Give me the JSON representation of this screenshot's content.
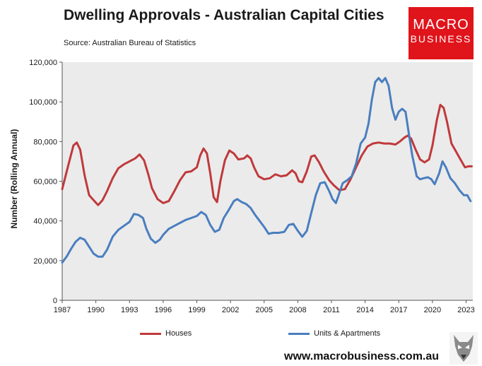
{
  "header": {
    "title": "Dwelling Approvals - Australian Capital Cities",
    "source": "Source: Australian Bureau of Statistics"
  },
  "logo": {
    "line1": "MACRO",
    "line2": "BUSINESS",
    "color": "#e0141b"
  },
  "footer": {
    "url": "www.macrobusiness.com.au"
  },
  "chart_data": {
    "type": "line",
    "title": "Dwelling Approvals - Australian Capital Cities",
    "xlabel": "",
    "ylabel": "Number (Rolling Annual)",
    "xlim": [
      1987,
      2023.6
    ],
    "ylim": [
      0,
      120000
    ],
    "x_ticks": [
      "1987",
      "1990",
      "1993",
      "1996",
      "1999",
      "2002",
      "2005",
      "2008",
      "2011",
      "2014",
      "2017",
      "2020",
      "2023"
    ],
    "y_ticks": [
      "0",
      "20,000",
      "40,000",
      "60,000",
      "80,000",
      "100,000",
      "120,000"
    ],
    "grid": false,
    "background": "#ebebeb",
    "legend": "bottom",
    "series": [
      {
        "name": "Houses",
        "color": "#c0393b",
        "points": [
          [
            1987.0,
            56000
          ],
          [
            1987.5,
            67000
          ],
          [
            1988.0,
            78000
          ],
          [
            1988.3,
            79500
          ],
          [
            1988.6,
            76000
          ],
          [
            1989.0,
            63000
          ],
          [
            1989.4,
            53000
          ],
          [
            1989.8,
            50500
          ],
          [
            1990.2,
            48000
          ],
          [
            1990.6,
            50500
          ],
          [
            1991.0,
            55000
          ],
          [
            1991.5,
            61500
          ],
          [
            1992.0,
            66500
          ],
          [
            1992.5,
            68500
          ],
          [
            1993.0,
            70000
          ],
          [
            1993.5,
            71500
          ],
          [
            1993.9,
            73500
          ],
          [
            1994.3,
            70500
          ],
          [
            1994.7,
            63000
          ],
          [
            1995.0,
            56500
          ],
          [
            1995.5,
            51000
          ],
          [
            1996.0,
            49000
          ],
          [
            1996.5,
            50000
          ],
          [
            1997.0,
            55000
          ],
          [
            1997.5,
            60500
          ],
          [
            1998.0,
            64500
          ],
          [
            1998.5,
            65000
          ],
          [
            1999.0,
            67000
          ],
          [
            1999.3,
            73000
          ],
          [
            1999.6,
            76500
          ],
          [
            1999.9,
            74000
          ],
          [
            2000.2,
            64000
          ],
          [
            2000.5,
            52000
          ],
          [
            2000.8,
            49500
          ],
          [
            2001.1,
            60000
          ],
          [
            2001.5,
            70500
          ],
          [
            2001.9,
            75500
          ],
          [
            2002.3,
            74000
          ],
          [
            2002.7,
            71000
          ],
          [
            2003.2,
            71500
          ],
          [
            2003.5,
            73000
          ],
          [
            2003.8,
            71500
          ],
          [
            2004.1,
            67000
          ],
          [
            2004.5,
            62500
          ],
          [
            2005.0,
            61000
          ],
          [
            2005.5,
            61500
          ],
          [
            2006.0,
            63500
          ],
          [
            2006.5,
            62500
          ],
          [
            2007.0,
            63000
          ],
          [
            2007.5,
            65500
          ],
          [
            2007.8,
            64000
          ],
          [
            2008.1,
            60000
          ],
          [
            2008.4,
            59500
          ],
          [
            2008.8,
            65000
          ],
          [
            2009.2,
            72500
          ],
          [
            2009.5,
            73000
          ],
          [
            2009.9,
            69500
          ],
          [
            2010.3,
            65000
          ],
          [
            2010.8,
            60500
          ],
          [
            2011.2,
            58000
          ],
          [
            2011.7,
            55500
          ],
          [
            2012.2,
            56000
          ],
          [
            2012.7,
            61000
          ],
          [
            2013.2,
            67000
          ],
          [
            2013.7,
            73000
          ],
          [
            2014.2,
            77500
          ],
          [
            2014.7,
            79000
          ],
          [
            2015.2,
            79500
          ],
          [
            2015.7,
            79000
          ],
          [
            2016.2,
            79000
          ],
          [
            2016.7,
            78500
          ],
          [
            2017.1,
            80000
          ],
          [
            2017.5,
            82000
          ],
          [
            2017.8,
            83000
          ],
          [
            2018.1,
            81500
          ],
          [
            2018.5,
            76000
          ],
          [
            2018.9,
            71000
          ],
          [
            2019.3,
            69500
          ],
          [
            2019.7,
            71000
          ],
          [
            2020.0,
            78000
          ],
          [
            2020.4,
            91000
          ],
          [
            2020.7,
            98500
          ],
          [
            2021.0,
            97000
          ],
          [
            2021.3,
            90000
          ],
          [
            2021.7,
            79000
          ],
          [
            2022.1,
            75000
          ],
          [
            2022.5,
            71000
          ],
          [
            2022.9,
            67000
          ],
          [
            2023.2,
            67500
          ],
          [
            2023.5,
            67500
          ]
        ]
      },
      {
        "name": "Units & Apartments",
        "color": "#4a7ebf",
        "points": [
          [
            1987.0,
            19000
          ],
          [
            1987.4,
            22000
          ],
          [
            1987.8,
            26000
          ],
          [
            1988.2,
            29500
          ],
          [
            1988.6,
            31500
          ],
          [
            1989.0,
            30500
          ],
          [
            1989.4,
            27000
          ],
          [
            1989.8,
            23500
          ],
          [
            1990.2,
            22000
          ],
          [
            1990.6,
            22000
          ],
          [
            1991.0,
            25500
          ],
          [
            1991.5,
            32000
          ],
          [
            1992.0,
            35500
          ],
          [
            1992.5,
            37500
          ],
          [
            1993.0,
            39500
          ],
          [
            1993.4,
            43500
          ],
          [
            1993.8,
            43000
          ],
          [
            1994.2,
            41500
          ],
          [
            1994.5,
            36000
          ],
          [
            1994.9,
            31000
          ],
          [
            1995.3,
            29000
          ],
          [
            1995.7,
            30500
          ],
          [
            1996.0,
            33000
          ],
          [
            1996.5,
            36000
          ],
          [
            1997.0,
            37500
          ],
          [
            1997.5,
            39000
          ],
          [
            1998.0,
            40500
          ],
          [
            1998.5,
            41500
          ],
          [
            1999.0,
            42500
          ],
          [
            1999.4,
            44500
          ],
          [
            1999.8,
            43000
          ],
          [
            2000.2,
            38000
          ],
          [
            2000.6,
            34500
          ],
          [
            2001.0,
            35500
          ],
          [
            2001.4,
            41500
          ],
          [
            2001.9,
            46000
          ],
          [
            2002.3,
            50000
          ],
          [
            2002.6,
            51000
          ],
          [
            2003.0,
            49500
          ],
          [
            2003.4,
            48500
          ],
          [
            2003.8,
            46500
          ],
          [
            2004.2,
            43000
          ],
          [
            2004.6,
            40000
          ],
          [
            2005.0,
            37000
          ],
          [
            2005.4,
            33500
          ],
          [
            2005.8,
            34000
          ],
          [
            2006.3,
            34000
          ],
          [
            2006.8,
            34500
          ],
          [
            2007.2,
            38000
          ],
          [
            2007.6,
            38500
          ],
          [
            2008.0,
            35000
          ],
          [
            2008.4,
            32000
          ],
          [
            2008.8,
            35000
          ],
          [
            2009.2,
            44000
          ],
          [
            2009.6,
            53000
          ],
          [
            2010.0,
            59000
          ],
          [
            2010.4,
            59500
          ],
          [
            2010.8,
            55000
          ],
          [
            2011.1,
            51000
          ],
          [
            2011.4,
            49000
          ],
          [
            2011.7,
            54000
          ],
          [
            2012.0,
            59000
          ],
          [
            2012.4,
            60500
          ],
          [
            2012.8,
            62500
          ],
          [
            2013.2,
            69000
          ],
          [
            2013.6,
            79000
          ],
          [
            2014.0,
            82000
          ],
          [
            2014.3,
            89000
          ],
          [
            2014.6,
            101000
          ],
          [
            2014.9,
            110000
          ],
          [
            2015.2,
            112000
          ],
          [
            2015.5,
            110000
          ],
          [
            2015.8,
            112000
          ],
          [
            2016.1,
            108000
          ],
          [
            2016.4,
            97000
          ],
          [
            2016.7,
            91000
          ],
          [
            2017.0,
            95000
          ],
          [
            2017.3,
            96500
          ],
          [
            2017.6,
            95000
          ],
          [
            2017.9,
            84000
          ],
          [
            2018.2,
            73000
          ],
          [
            2018.6,
            62500
          ],
          [
            2018.9,
            61000
          ],
          [
            2019.2,
            61500
          ],
          [
            2019.6,
            62000
          ],
          [
            2019.9,
            61000
          ],
          [
            2020.2,
            58500
          ],
          [
            2020.6,
            64000
          ],
          [
            2020.9,
            70000
          ],
          [
            2021.2,
            67000
          ],
          [
            2021.6,
            61500
          ],
          [
            2022.0,
            59000
          ],
          [
            2022.4,
            55500
          ],
          [
            2022.8,
            53000
          ],
          [
            2023.1,
            53000
          ],
          [
            2023.4,
            50000
          ]
        ]
      }
    ]
  }
}
